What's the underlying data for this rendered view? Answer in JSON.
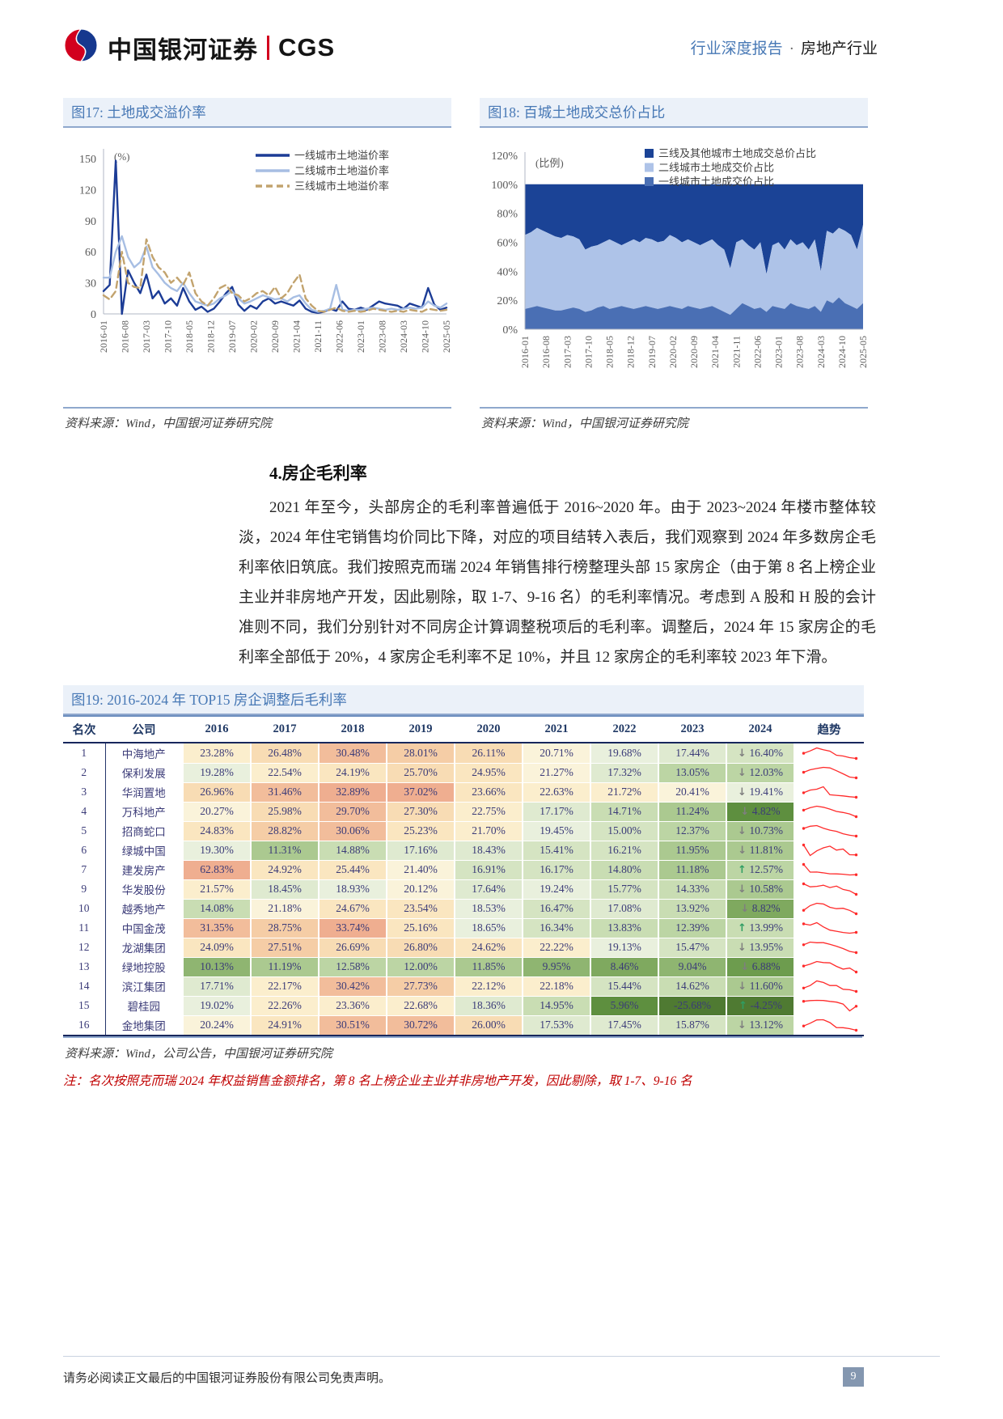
{
  "header": {
    "brand_cn": "中国银河证券",
    "brand_en": "CGS",
    "doc_type": "行业深度报告",
    "separator": "·",
    "industry": "房地产行业"
  },
  "figures": {
    "fig17": {
      "title": "图17: 土地成交溢价率",
      "source": "资料来源：Wind，中国银河证券研究院"
    },
    "fig18": {
      "title": "图18: 百城土地成交总价占比",
      "source": "资料来源：Wind，中国银河证券研究院"
    },
    "fig19": {
      "title": "图19: 2016-2024 年 TOP15 房企调整后毛利率",
      "source": "资料来源：Wind，公司公告，中国银河证券研究院",
      "note": "注：名次按照克而瑞 2024 年权益销售金额排名，第 8 名上榜企业主业并非房地产开发，因此剔除，取 1-7、9-16 名"
    }
  },
  "section": {
    "heading": "4.房企毛利率",
    "paragraph": "2021 年至今，头部房企的毛利率普遍低于 2016~2020 年。由于 2023~2024 年楼市整体较淡，2024 年住宅销售均价同比下降，对应的项目结转入表后，我们观察到 2024 年多数房企毛利率依旧筑底。我们按照克而瑞 2024 年销售排行榜整理头部 15 家房企（由于第 8 名上榜企业主业并非房地产开发，因此剔除，取 1-7、9-16 名）的毛利率情况。考虑到 A 股和 H 股的会计准则不同，我们分别针对不同房企计算调整税项后的毛利率。调整后，2024 年 15 家房企的毛利率全部低于 20%，4 家房企毛利率不足 10%，并且 12 家房企的毛利率较 2023 年下滑。"
  },
  "footer": {
    "disclaimer": "请务必阅读正文最后的中国银河证券股份有限公司免责声明。",
    "page": "9"
  },
  "chart_data": [
    {
      "id": "fig17",
      "type": "line",
      "title": "土地成交溢价率",
      "unit_label": "(%)",
      "ylim": [
        0,
        150
      ],
      "y_ticks": [
        0,
        30,
        60,
        90,
        120,
        150
      ],
      "x_ticks": [
        "2016-01",
        "2016-08",
        "2017-03",
        "2017-10",
        "2018-05",
        "2018-12",
        "2019-07",
        "2020-02",
        "2020-09",
        "2021-04",
        "2021-11",
        "2022-06",
        "2023-01",
        "2023-08",
        "2024-03",
        "2024-10",
        "2025-05"
      ],
      "x_tick_step_months": 7,
      "x_step_months": 2,
      "legend_position": "top-right",
      "grid": false,
      "series": [
        {
          "name": "一线城市土地溢价率",
          "color": "#1c3c96",
          "dash": null,
          "values": [
            22,
            28,
            148,
            0,
            42,
            30,
            20,
            38,
            15,
            22,
            10,
            15,
            8,
            25,
            12,
            4,
            7,
            2,
            5,
            12,
            20,
            26,
            9,
            3,
            8,
            5,
            12,
            15,
            10,
            12,
            10,
            8,
            13,
            5,
            2,
            1,
            2,
            5,
            3,
            12,
            5,
            4,
            6,
            4,
            8,
            12,
            10,
            9,
            8,
            5,
            10,
            8,
            6,
            25,
            9,
            4,
            6
          ]
        },
        {
          "name": "二线城市土地溢价率",
          "color": "#a7bee3",
          "dash": null,
          "values": [
            35,
            35,
            60,
            75,
            55,
            45,
            50,
            65,
            45,
            38,
            30,
            25,
            22,
            30,
            20,
            12,
            10,
            8,
            10,
            15,
            18,
            22,
            15,
            10,
            12,
            15,
            18,
            16,
            14,
            15,
            12,
            16,
            18,
            10,
            4,
            2,
            3,
            5,
            28,
            4,
            3,
            4,
            4,
            5,
            6,
            5,
            4,
            5,
            4,
            5,
            6,
            5,
            6,
            12,
            8,
            6,
            10
          ]
        },
        {
          "name": "三线城市土地溢价率",
          "color": "#c2a36e",
          "dash": "8 5",
          "values": [
            18,
            14,
            22,
            60,
            30,
            26,
            25,
            72,
            55,
            45,
            40,
            30,
            35,
            28,
            40,
            20,
            12,
            8,
            15,
            25,
            28,
            20,
            18,
            12,
            15,
            20,
            22,
            18,
            26,
            15,
            20,
            30,
            38,
            15,
            8,
            3,
            2,
            4,
            6,
            3,
            2,
            3,
            2,
            3,
            5,
            4,
            3,
            2,
            3,
            2,
            4,
            3,
            2,
            5,
            4,
            3,
            4
          ]
        }
      ]
    },
    {
      "id": "fig18",
      "type": "area",
      "title": "百城土地成交总价占比",
      "unit_label": "(比例)",
      "ylim": [
        0,
        120
      ],
      "y_ticks": [
        0,
        20,
        40,
        60,
        80,
        100,
        120
      ],
      "y_tick_suffix": "%",
      "x_ticks": [
        "2016-01",
        "2016-08",
        "2017-03",
        "2017-10",
        "2018-05",
        "2018-12",
        "2019-07",
        "2020-02",
        "2020-09",
        "2021-04",
        "2021-11",
        "2022-06",
        "2023-01",
        "2023-08",
        "2024-03",
        "2024-10",
        "2025-05"
      ],
      "x_tick_step_months": 7,
      "x_step_months": 2,
      "legend_position": "top-right",
      "grid": false,
      "total": 100,
      "legend": [
        {
          "name": "三线及其他城市土地成交总价占比",
          "color": "#1b4396"
        },
        {
          "name": "二线城市土地成交价占比",
          "color": "#aec3e8"
        },
        {
          "name": "一线城市土地成交价占比",
          "color": "#4a6fb4"
        }
      ],
      "boundaries": {
        "tier1_top": [
          14,
          15,
          16,
          15,
          14,
          13,
          13,
          14,
          15,
          14,
          12,
          13,
          15,
          16,
          14,
          15,
          16,
          15,
          14,
          15,
          16,
          15,
          14,
          15,
          16,
          15,
          14,
          16,
          15,
          14,
          15,
          16,
          14,
          12,
          10,
          14,
          18,
          16,
          14,
          15,
          12,
          16,
          15,
          14,
          18,
          16,
          15,
          14,
          16,
          12,
          20,
          18,
          22,
          18,
          16,
          14,
          18
        ],
        "tier2_top": [
          65,
          67,
          70,
          68,
          66,
          64,
          63,
          65,
          64,
          62,
          55,
          57,
          58,
          60,
          62,
          60,
          58,
          60,
          62,
          60,
          63,
          62,
          60,
          61,
          65,
          63,
          60,
          62,
          60,
          58,
          60,
          62,
          58,
          55,
          42,
          60,
          62,
          58,
          55,
          60,
          38,
          58,
          60,
          55,
          62,
          58,
          60,
          55,
          62,
          40,
          68,
          66,
          70,
          68,
          65,
          55,
          72
        ]
      }
    },
    {
      "id": "fig19",
      "type": "table",
      "columns": [
        "名次",
        "公司",
        "2016",
        "2017",
        "2018",
        "2019",
        "2020",
        "2021",
        "2022",
        "2023",
        "2024",
        "趋势"
      ],
      "rows": [
        {
          "rank": "1",
          "company": "中海地产",
          "values": [
            23.28,
            26.48,
            30.48,
            28.01,
            26.11,
            20.71,
            19.68,
            17.44,
            16.4
          ],
          "dir2024": "down"
        },
        {
          "rank": "2",
          "company": "保利发展",
          "values": [
            19.28,
            22.54,
            24.19,
            25.7,
            24.95,
            21.27,
            17.32,
            13.05,
            12.03
          ],
          "dir2024": "down"
        },
        {
          "rank": "3",
          "company": "华润置地",
          "values": [
            26.96,
            31.46,
            32.89,
            37.02,
            23.66,
            22.63,
            21.72,
            20.41,
            19.41
          ],
          "dir2024": "down"
        },
        {
          "rank": "4",
          "company": "万科地产",
          "values": [
            20.27,
            25.98,
            29.7,
            27.3,
            22.75,
            17.17,
            14.71,
            11.24,
            4.82
          ],
          "dir2024": "down"
        },
        {
          "rank": "5",
          "company": "招商蛇口",
          "values": [
            24.83,
            28.82,
            30.06,
            25.23,
            21.7,
            19.45,
            15.0,
            12.37,
            10.73
          ],
          "dir2024": "down"
        },
        {
          "rank": "6",
          "company": "绿城中国",
          "values": [
            19.3,
            11.31,
            14.88,
            17.16,
            18.43,
            15.41,
            16.21,
            11.95,
            11.81
          ],
          "dir2024": "down"
        },
        {
          "rank": "7",
          "company": "建发房产",
          "values": [
            62.83,
            24.92,
            25.44,
            21.4,
            16.91,
            16.17,
            14.8,
            11.18,
            12.57
          ],
          "dir2024": "up"
        },
        {
          "rank": "9",
          "company": "华发股份",
          "values": [
            21.57,
            18.45,
            18.93,
            20.12,
            17.64,
            19.24,
            15.77,
            14.33,
            10.58
          ],
          "dir2024": "down"
        },
        {
          "rank": "10",
          "company": "越秀地产",
          "values": [
            14.08,
            21.18,
            24.67,
            23.54,
            18.53,
            16.47,
            17.08,
            13.92,
            8.82
          ],
          "dir2024": "down"
        },
        {
          "rank": "11",
          "company": "中国金茂",
          "values": [
            31.35,
            28.75,
            33.74,
            25.16,
            18.65,
            16.34,
            13.83,
            12.39,
            13.99
          ],
          "dir2024": "up"
        },
        {
          "rank": "12",
          "company": "龙湖集团",
          "values": [
            24.09,
            27.51,
            26.69,
            26.8,
            24.62,
            22.22,
            19.13,
            15.47,
            13.95
          ],
          "dir2024": "down"
        },
        {
          "rank": "13",
          "company": "绿地控股",
          "values": [
            10.13,
            11.19,
            12.58,
            12.0,
            11.85,
            9.95,
            8.46,
            9.04,
            6.88
          ],
          "dir2024": "down"
        },
        {
          "rank": "14",
          "company": "滨江集团",
          "values": [
            17.71,
            22.17,
            30.42,
            27.73,
            22.12,
            22.18,
            15.44,
            14.62,
            11.6
          ],
          "dir2024": "down"
        },
        {
          "rank": "15",
          "company": "碧桂园",
          "values": [
            19.02,
            22.26,
            23.36,
            22.68,
            18.36,
            14.95,
            5.96,
            -25.68,
            -4.25
          ],
          "dir2024": "up"
        },
        {
          "rank": "16",
          "company": "金地集团",
          "values": [
            20.24,
            24.91,
            30.51,
            30.72,
            26.0,
            17.53,
            17.45,
            15.87,
            13.12
          ],
          "dir2024": "down"
        }
      ]
    }
  ]
}
